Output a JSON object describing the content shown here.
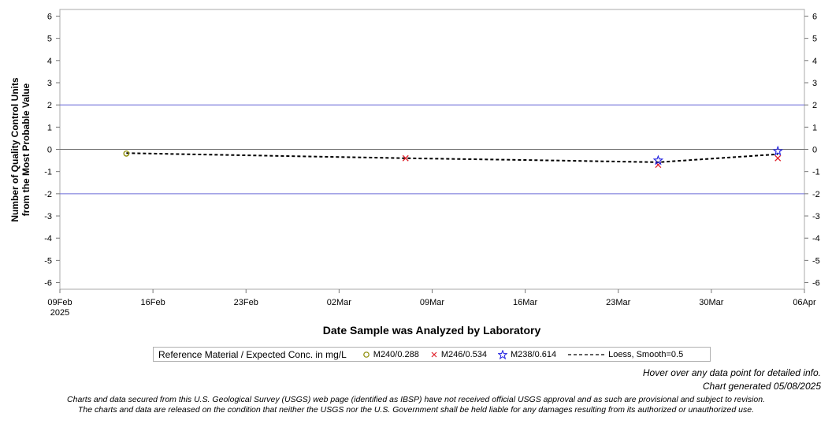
{
  "chart_data": {
    "type": "scatter",
    "ylabel_line1": "Number of Quality Control Units",
    "ylabel_line2": "from the Most Probable Value",
    "xlabel": "Date Sample was Analyzed by Laboratory",
    "ylim": [
      -6.3,
      6.3
    ],
    "yticks": [
      6,
      5,
      4,
      3,
      2,
      1,
      0,
      -1,
      -2,
      -3,
      -4,
      -5,
      -6
    ],
    "y_tick_labels": [
      "6",
      "5",
      "4",
      "3",
      "2",
      "1",
      "0",
      "-1",
      "-2",
      "-3",
      "-4",
      "-5",
      "-6"
    ],
    "xlim": [
      "2025-02-09",
      "2025-04-06"
    ],
    "xticks": [
      {
        "date": "2025-02-09",
        "label": "09Feb",
        "sublabel": "2025"
      },
      {
        "date": "2025-02-16",
        "label": "16Feb"
      },
      {
        "date": "2025-02-23",
        "label": "23Feb"
      },
      {
        "date": "2025-03-02",
        "label": "02Mar"
      },
      {
        "date": "2025-03-09",
        "label": "09Mar"
      },
      {
        "date": "2025-03-16",
        "label": "16Mar"
      },
      {
        "date": "2025-03-23",
        "label": "23Mar"
      },
      {
        "date": "2025-03-30",
        "label": "30Mar"
      },
      {
        "date": "2025-04-06",
        "label": "06Apr"
      }
    ],
    "reference_lines": [
      {
        "y": 2,
        "color": "#6c6cd8"
      },
      {
        "y": 0,
        "color": "#707070"
      },
      {
        "y": -2,
        "color": "#6c6cd8"
      }
    ],
    "series": [
      {
        "name": "M240/0.288",
        "marker": "circle",
        "color": "#8a8a00",
        "points": [
          {
            "x": "2025-02-14",
            "y": -0.19
          }
        ]
      },
      {
        "name": "M246/0.534",
        "marker": "x",
        "color": "#e0202a",
        "points": [
          {
            "x": "2025-03-07",
            "y": -0.4
          },
          {
            "x": "2025-03-26",
            "y": -0.7
          },
          {
            "x": "2025-04-04",
            "y": -0.4
          }
        ]
      },
      {
        "name": "M238/0.614",
        "marker": "star",
        "color": "#2020e0",
        "points": [
          {
            "x": "2025-03-26",
            "y": -0.5
          },
          {
            "x": "2025-04-04",
            "y": -0.08
          }
        ]
      },
      {
        "name": "Loess, Smooth=0.5",
        "marker": "dashed-line",
        "color": "#000000",
        "points": [
          {
            "x": "2025-02-14",
            "y": -0.17
          },
          {
            "x": "2025-03-07",
            "y": -0.4
          },
          {
            "x": "2025-03-16",
            "y": -0.48
          },
          {
            "x": "2025-03-26",
            "y": -0.58
          },
          {
            "x": "2025-04-04",
            "y": -0.22
          }
        ]
      }
    ],
    "grid": false,
    "legend_position": "bottom"
  },
  "legend": {
    "title": "Reference Material / Expected Conc. in mg/L",
    "items": [
      "M240/0.288",
      "M246/0.534",
      "M238/0.614",
      "Loess, Smooth=0.5"
    ]
  },
  "notes": {
    "hover": "Hover over any data point for detailed info.",
    "generated": "Chart generated 05/08/2025",
    "disclaimer1": "Charts and data secured from this U.S. Geological Survey (USGS) web page (identified as IBSP) have not received official USGS approval and as such are provisional and subject to revision.",
    "disclaimer2": "The charts and data are released on the condition that neither the USGS nor the U.S. Government shall be held liable for any damages resulting from its authorized or unauthorized use."
  }
}
